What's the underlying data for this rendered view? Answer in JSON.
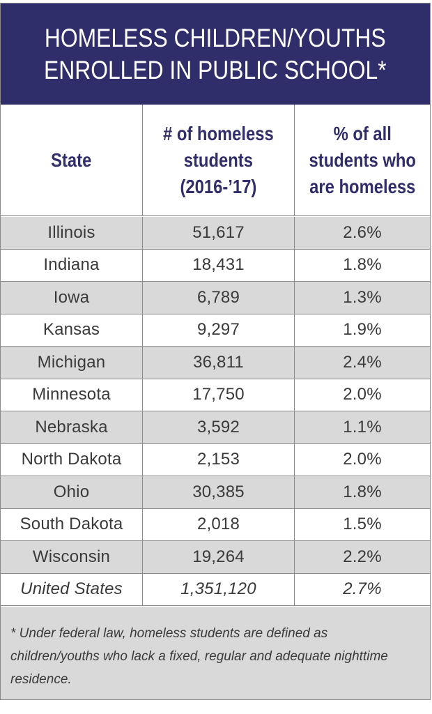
{
  "title": {
    "line1": "HOMELESS CHILDREN/YOUTHS",
    "line2": "ENROLLED IN PUBLIC SCHOOL*"
  },
  "headers": {
    "state": "State",
    "count": "# of homeless\nstudents\n(2016-’17)",
    "percent": "% of all\nstudents who\nare homeless"
  },
  "rows": [
    {
      "state": "Illinois",
      "count": "51,617",
      "percent": "2.6%"
    },
    {
      "state": "Indiana",
      "count": "18,431",
      "percent": "1.8%"
    },
    {
      "state": "Iowa",
      "count": "6,789",
      "percent": "1.3%"
    },
    {
      "state": "Kansas",
      "count": "9,297",
      "percent": "1.9%"
    },
    {
      "state": "Michigan",
      "count": "36,811",
      "percent": "2.4%"
    },
    {
      "state": "Minnesota",
      "count": "17,750",
      "percent": "2.0%"
    },
    {
      "state": "Nebraska",
      "count": "3,592",
      "percent": "1.1%"
    },
    {
      "state": "North Dakota",
      "count": "2,153",
      "percent": "2.0%"
    },
    {
      "state": "Ohio",
      "count": "30,385",
      "percent": "1.8%"
    },
    {
      "state": "South Dakota",
      "count": "2,018",
      "percent": "1.5%"
    },
    {
      "state": "Wisconsin",
      "count": "19,264",
      "percent": "2.2%"
    },
    {
      "state": "United States",
      "count": "1,351,120",
      "percent": "2.7%"
    }
  ],
  "footnote": "* Under federal law, homeless students are defined as children/youths who lack a fixed, regular and adequate nighttime residence.",
  "colors": {
    "header_bg": "#302d6b",
    "header_text": "#302d6b",
    "shade": "#d9d9da"
  },
  "chart_data": {
    "type": "table",
    "title": "HOMELESS CHILDREN/YOUTHS ENROLLED IN PUBLIC SCHOOL*",
    "columns": [
      "State",
      "# of homeless students (2016-’17)",
      "% of all students who are homeless"
    ],
    "rows": [
      [
        "Illinois",
        51617,
        2.6
      ],
      [
        "Indiana",
        18431,
        1.8
      ],
      [
        "Iowa",
        6789,
        1.3
      ],
      [
        "Kansas",
        9297,
        1.9
      ],
      [
        "Michigan",
        36811,
        2.4
      ],
      [
        "Minnesota",
        17750,
        2.0
      ],
      [
        "Nebraska",
        3592,
        1.1
      ],
      [
        "North Dakota",
        2153,
        2.0
      ],
      [
        "Ohio",
        30385,
        1.8
      ],
      [
        "South Dakota",
        2018,
        1.5
      ],
      [
        "Wisconsin",
        19264,
        2.2
      ],
      [
        "United States",
        1351120,
        2.7
      ]
    ]
  }
}
